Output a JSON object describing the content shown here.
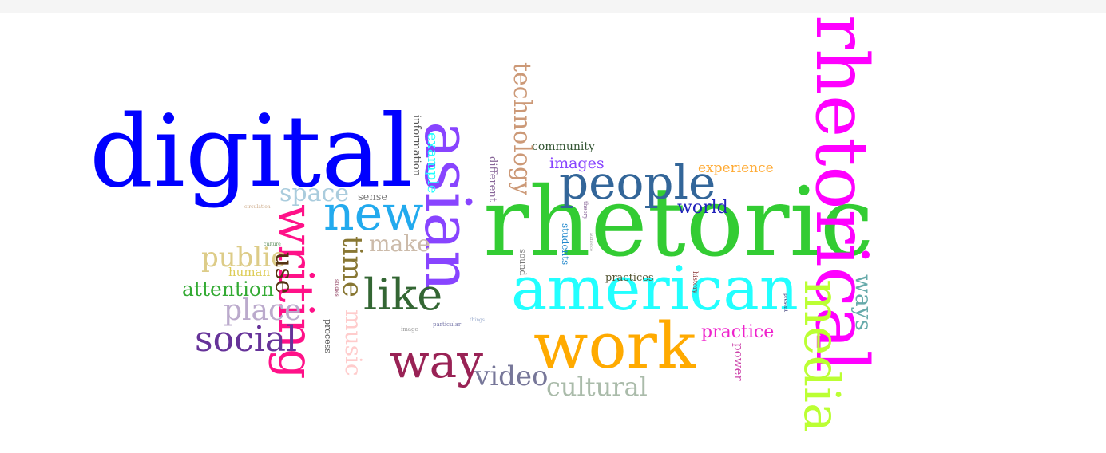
{
  "words": [
    {
      "text": "rhetoric",
      "color": "#33cc33"
    },
    {
      "text": "rhetorical",
      "color": "#ff00ff"
    },
    {
      "text": "digital",
      "color": "#0000ff"
    },
    {
      "text": "asian",
      "color": "#8844ff"
    },
    {
      "text": "american",
      "color": "#22ffff"
    },
    {
      "text": "work",
      "color": "#ffaa00"
    },
    {
      "text": "media",
      "color": "#bbff33"
    },
    {
      "text": "people",
      "color": "#336699"
    },
    {
      "text": "writing",
      "color": "#ff1188"
    },
    {
      "text": "new",
      "color": "#22aaee"
    },
    {
      "text": "like",
      "color": "#336633"
    },
    {
      "text": "way",
      "color": "#992255"
    },
    {
      "text": "social",
      "color": "#663399"
    },
    {
      "text": "technology",
      "color": "#cc9977"
    },
    {
      "text": "video",
      "color": "#777799"
    },
    {
      "text": "cultural",
      "color": "#aabbaa"
    },
    {
      "text": "place",
      "color": "#bbaacc"
    },
    {
      "text": "public",
      "color": "#ddcc88"
    },
    {
      "text": "space",
      "color": "#aaccdd"
    },
    {
      "text": "time",
      "color": "#887733"
    },
    {
      "text": "music",
      "color": "#ffcccc"
    },
    {
      "text": "make",
      "color": "#ccbbaa"
    },
    {
      "text": "use",
      "color": "#553311"
    },
    {
      "text": "attention",
      "color": "#33aa33"
    },
    {
      "text": "ways",
      "color": "#66aaaa"
    },
    {
      "text": "practice",
      "color": "#ee22cc"
    },
    {
      "text": "world",
      "color": "#2222bb"
    },
    {
      "text": "images",
      "color": "#8844ff"
    },
    {
      "text": "experience",
      "color": "#ffaa33"
    },
    {
      "text": "community",
      "color": "#335533"
    },
    {
      "text": "example",
      "color": "#22ffff"
    },
    {
      "text": "different",
      "color": "#886699"
    },
    {
      "text": "information",
      "color": "#555555"
    },
    {
      "text": "human",
      "color": "#ddcc55"
    },
    {
      "text": "sense",
      "color": "#777777"
    },
    {
      "text": "power",
      "color": "#cc44aa"
    },
    {
      "text": "practices",
      "color": "#555533"
    },
    {
      "text": "students",
      "color": "#2288cc"
    },
    {
      "text": "sound",
      "color": "#777777"
    },
    {
      "text": "process",
      "color": "#555555"
    },
    {
      "text": "history",
      "color": "#883333"
    },
    {
      "text": "theory",
      "color": "#886699"
    },
    {
      "text": "audience",
      "color": "#999999"
    },
    {
      "text": "circulation",
      "color": "#ccaa88"
    },
    {
      "text": "culture",
      "color": "#558855"
    },
    {
      "text": "studies",
      "color": "#883355"
    },
    {
      "text": "image",
      "color": "#999999"
    },
    {
      "text": "particular",
      "color": "#7777aa"
    },
    {
      "text": "things",
      "color": "#99aacc"
    },
    {
      "text": "present",
      "color": "#222266"
    }
  ]
}
